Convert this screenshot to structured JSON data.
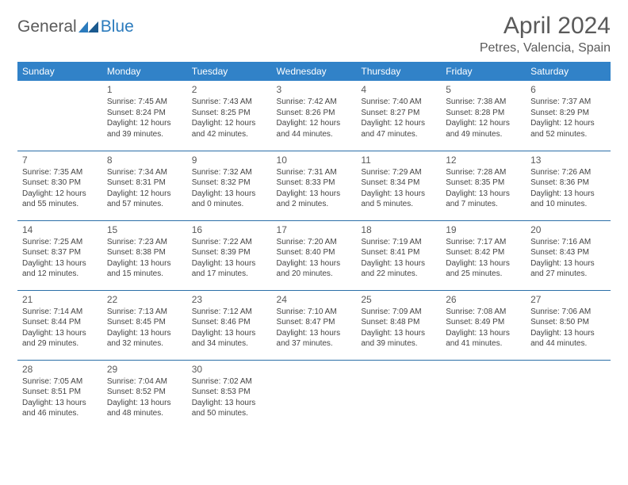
{
  "logo": {
    "text_general": "General",
    "text_blue": "Blue"
  },
  "title": "April 2024",
  "location": "Petres, Valencia, Spain",
  "weekdays": [
    "Sunday",
    "Monday",
    "Tuesday",
    "Wednesday",
    "Thursday",
    "Friday",
    "Saturday"
  ],
  "colors": {
    "header_bg": "#3182c8",
    "header_text": "#ffffff",
    "divider": "#2b6fa8",
    "text": "#333333",
    "muted": "#5a5a5a",
    "logo_blue": "#2b7bbd"
  },
  "typography": {
    "title_fontsize": 30,
    "location_fontsize": 16,
    "weekday_fontsize": 12,
    "daynum_fontsize": 12,
    "info_fontsize": 10
  },
  "grid": {
    "rows": 5,
    "cols": 7,
    "first_weekday_index": 1,
    "days_in_month": 30
  },
  "days": [
    {
      "n": 1,
      "sunrise": "7:45 AM",
      "sunset": "8:24 PM",
      "daylight": "12 hours and 39 minutes."
    },
    {
      "n": 2,
      "sunrise": "7:43 AM",
      "sunset": "8:25 PM",
      "daylight": "12 hours and 42 minutes."
    },
    {
      "n": 3,
      "sunrise": "7:42 AM",
      "sunset": "8:26 PM",
      "daylight": "12 hours and 44 minutes."
    },
    {
      "n": 4,
      "sunrise": "7:40 AM",
      "sunset": "8:27 PM",
      "daylight": "12 hours and 47 minutes."
    },
    {
      "n": 5,
      "sunrise": "7:38 AM",
      "sunset": "8:28 PM",
      "daylight": "12 hours and 49 minutes."
    },
    {
      "n": 6,
      "sunrise": "7:37 AM",
      "sunset": "8:29 PM",
      "daylight": "12 hours and 52 minutes."
    },
    {
      "n": 7,
      "sunrise": "7:35 AM",
      "sunset": "8:30 PM",
      "daylight": "12 hours and 55 minutes."
    },
    {
      "n": 8,
      "sunrise": "7:34 AM",
      "sunset": "8:31 PM",
      "daylight": "12 hours and 57 minutes."
    },
    {
      "n": 9,
      "sunrise": "7:32 AM",
      "sunset": "8:32 PM",
      "daylight": "13 hours and 0 minutes."
    },
    {
      "n": 10,
      "sunrise": "7:31 AM",
      "sunset": "8:33 PM",
      "daylight": "13 hours and 2 minutes."
    },
    {
      "n": 11,
      "sunrise": "7:29 AM",
      "sunset": "8:34 PM",
      "daylight": "13 hours and 5 minutes."
    },
    {
      "n": 12,
      "sunrise": "7:28 AM",
      "sunset": "8:35 PM",
      "daylight": "13 hours and 7 minutes."
    },
    {
      "n": 13,
      "sunrise": "7:26 AM",
      "sunset": "8:36 PM",
      "daylight": "13 hours and 10 minutes."
    },
    {
      "n": 14,
      "sunrise": "7:25 AM",
      "sunset": "8:37 PM",
      "daylight": "13 hours and 12 minutes."
    },
    {
      "n": 15,
      "sunrise": "7:23 AM",
      "sunset": "8:38 PM",
      "daylight": "13 hours and 15 minutes."
    },
    {
      "n": 16,
      "sunrise": "7:22 AM",
      "sunset": "8:39 PM",
      "daylight": "13 hours and 17 minutes."
    },
    {
      "n": 17,
      "sunrise": "7:20 AM",
      "sunset": "8:40 PM",
      "daylight": "13 hours and 20 minutes."
    },
    {
      "n": 18,
      "sunrise": "7:19 AM",
      "sunset": "8:41 PM",
      "daylight": "13 hours and 22 minutes."
    },
    {
      "n": 19,
      "sunrise": "7:17 AM",
      "sunset": "8:42 PM",
      "daylight": "13 hours and 25 minutes."
    },
    {
      "n": 20,
      "sunrise": "7:16 AM",
      "sunset": "8:43 PM",
      "daylight": "13 hours and 27 minutes."
    },
    {
      "n": 21,
      "sunrise": "7:14 AM",
      "sunset": "8:44 PM",
      "daylight": "13 hours and 29 minutes."
    },
    {
      "n": 22,
      "sunrise": "7:13 AM",
      "sunset": "8:45 PM",
      "daylight": "13 hours and 32 minutes."
    },
    {
      "n": 23,
      "sunrise": "7:12 AM",
      "sunset": "8:46 PM",
      "daylight": "13 hours and 34 minutes."
    },
    {
      "n": 24,
      "sunrise": "7:10 AM",
      "sunset": "8:47 PM",
      "daylight": "13 hours and 37 minutes."
    },
    {
      "n": 25,
      "sunrise": "7:09 AM",
      "sunset": "8:48 PM",
      "daylight": "13 hours and 39 minutes."
    },
    {
      "n": 26,
      "sunrise": "7:08 AM",
      "sunset": "8:49 PM",
      "daylight": "13 hours and 41 minutes."
    },
    {
      "n": 27,
      "sunrise": "7:06 AM",
      "sunset": "8:50 PM",
      "daylight": "13 hours and 44 minutes."
    },
    {
      "n": 28,
      "sunrise": "7:05 AM",
      "sunset": "8:51 PM",
      "daylight": "13 hours and 46 minutes."
    },
    {
      "n": 29,
      "sunrise": "7:04 AM",
      "sunset": "8:52 PM",
      "daylight": "13 hours and 48 minutes."
    },
    {
      "n": 30,
      "sunrise": "7:02 AM",
      "sunset": "8:53 PM",
      "daylight": "13 hours and 50 minutes."
    }
  ],
  "labels": {
    "sunrise": "Sunrise:",
    "sunset": "Sunset:",
    "daylight": "Daylight:"
  }
}
